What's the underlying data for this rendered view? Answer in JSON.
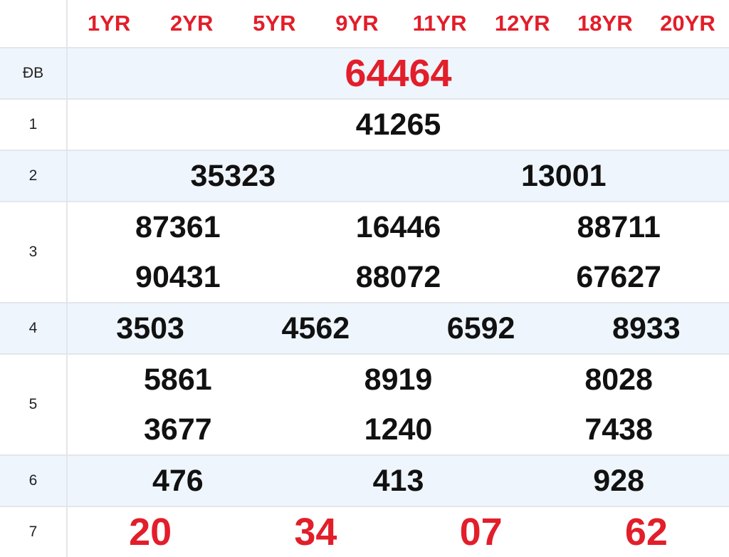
{
  "header": {
    "codes": [
      "1YR",
      "2YR",
      "5YR",
      "9YR",
      "11YR",
      "12YR",
      "18YR",
      "20YR"
    ]
  },
  "rows": [
    {
      "label": "ĐB",
      "numbers": [
        "64464"
      ]
    },
    {
      "label": "1",
      "numbers": [
        "41265"
      ]
    },
    {
      "label": "2",
      "numbers": [
        "35323",
        "13001"
      ]
    },
    {
      "label": "3",
      "numbers": [
        "87361",
        "16446",
        "88711",
        "90431",
        "88072",
        "67627"
      ]
    },
    {
      "label": "4",
      "numbers": [
        "3503",
        "4562",
        "6592",
        "8933"
      ]
    },
    {
      "label": "5",
      "numbers": [
        "5861",
        "8919",
        "8028",
        "3677",
        "1240",
        "7438"
      ]
    },
    {
      "label": "6",
      "numbers": [
        "476",
        "413",
        "928"
      ]
    },
    {
      "label": "7",
      "numbers": [
        "20",
        "34",
        "07",
        "62"
      ]
    }
  ],
  "colors": {
    "accent": "#e21e2a",
    "row_alt": "#eef5fd"
  }
}
